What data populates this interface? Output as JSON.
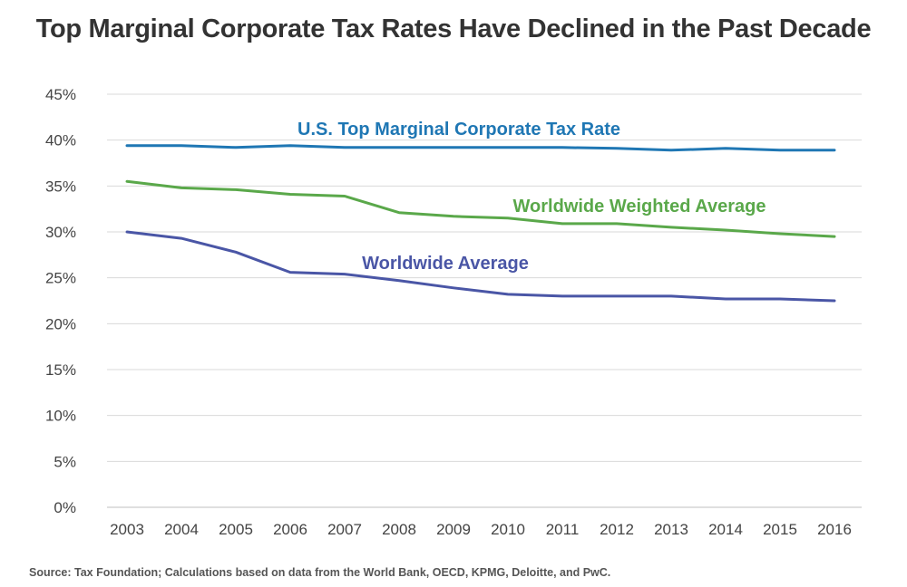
{
  "title": "Top Marginal Corporate Tax Rates Have Declined in the Past Decade",
  "source": "Source: Tax Foundation; Calculations based on data from the World Bank, OECD, KPMG, Deloitte, and PwC.",
  "chart_data": {
    "type": "line",
    "title": "Top Marginal Corporate Tax Rates Have Declined in the Past Decade",
    "x": [
      "2003",
      "2004",
      "2005",
      "2006",
      "2007",
      "2008",
      "2009",
      "2010",
      "2011",
      "2012",
      "2013",
      "2014",
      "2015",
      "2016"
    ],
    "ylim": [
      0,
      45
    ],
    "yticks": [
      "0%",
      "5%",
      "10%",
      "15%",
      "20%",
      "25%",
      "30%",
      "35%",
      "40%",
      "45%"
    ],
    "grid": "horizontal",
    "series": [
      {
        "name": "U.S. Top Marginal Corporate Tax Rate",
        "color": "#1f77b4",
        "values": [
          39.4,
          39.4,
          39.2,
          39.4,
          39.2,
          39.2,
          39.2,
          39.2,
          39.2,
          39.1,
          38.9,
          39.1,
          38.9,
          38.9
        ]
      },
      {
        "name": "Worldwide Weighted Average",
        "color": "#5aa84a",
        "values": [
          35.5,
          34.8,
          34.6,
          34.1,
          33.9,
          32.1,
          31.7,
          31.5,
          30.9,
          30.9,
          30.5,
          30.2,
          29.8,
          29.5
        ]
      },
      {
        "name": "Worldwide Average",
        "color": "#4a56a6",
        "values": [
          30.0,
          29.3,
          27.8,
          25.6,
          25.4,
          24.7,
          23.9,
          23.2,
          23.0,
          23.0,
          23.0,
          22.7,
          22.7,
          22.5
        ]
      }
    ]
  }
}
